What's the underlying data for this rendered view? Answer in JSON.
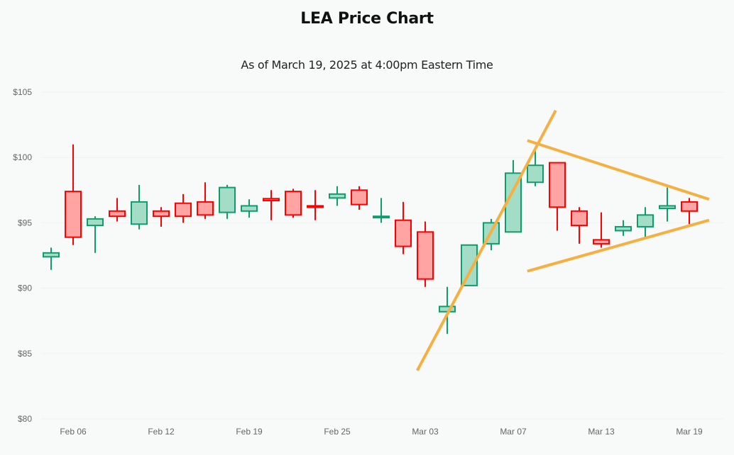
{
  "chart_data": {
    "type": "candlestick",
    "title": "LEA Price Chart",
    "subtitle": "As of March 19, 2025 at 4:00pm Eastern Time",
    "xlabel": "",
    "ylabel": "",
    "ylim": [
      80,
      105
    ],
    "y_ticks": [
      {
        "value": 105,
        "label": "$105"
      },
      {
        "value": 100,
        "label": "$100"
      },
      {
        "value": 95,
        "label": "$95"
      },
      {
        "value": 90,
        "label": "$90"
      },
      {
        "value": 85,
        "label": "$85"
      },
      {
        "value": 80,
        "label": "$80"
      }
    ],
    "x_ticks": [
      {
        "index": 1,
        "label": "Feb 06"
      },
      {
        "index": 5,
        "label": "Feb 12"
      },
      {
        "index": 9,
        "label": "Feb 19"
      },
      {
        "index": 13,
        "label": "Feb 25"
      },
      {
        "index": 17,
        "label": "Mar 03"
      },
      {
        "index": 21,
        "label": "Mar 07"
      },
      {
        "index": 25,
        "label": "Mar 13"
      },
      {
        "index": 29,
        "label": "Mar 19"
      }
    ],
    "grid": true,
    "colors": {
      "up_stroke": "#0f9d6b",
      "up_fill": "#a3dcc7",
      "down_stroke": "#ff0000",
      "down_fill": "#ffa3a3",
      "trendline": "#f5b041",
      "grid": "#eef3f1"
    },
    "candles": [
      {
        "open": 92.4,
        "high": 93.1,
        "low": 91.4,
        "close": 92.7
      },
      {
        "open": 97.4,
        "high": 101.0,
        "low": 93.3,
        "close": 93.9
      },
      {
        "open": 94.8,
        "high": 95.5,
        "low": 92.7,
        "close": 95.3
      },
      {
        "open": 95.9,
        "high": 96.9,
        "low": 95.1,
        "close": 95.5
      },
      {
        "open": 94.9,
        "high": 97.9,
        "low": 94.5,
        "close": 96.6
      },
      {
        "open": 95.9,
        "high": 96.2,
        "low": 94.7,
        "close": 95.5
      },
      {
        "open": 96.5,
        "high": 97.2,
        "low": 95.0,
        "close": 95.5
      },
      {
        "open": 96.6,
        "high": 98.1,
        "low": 95.3,
        "close": 95.6
      },
      {
        "open": 95.8,
        "high": 97.9,
        "low": 95.3,
        "close": 97.7
      },
      {
        "open": 95.9,
        "high": 96.8,
        "low": 95.4,
        "close": 96.3
      },
      {
        "open": 96.85,
        "high": 97.5,
        "low": 95.2,
        "close": 96.7
      },
      {
        "open": 97.4,
        "high": 97.6,
        "low": 95.4,
        "close": 95.6
      },
      {
        "open": 96.3,
        "high": 97.5,
        "low": 95.2,
        "close": 96.2
      },
      {
        "open": 96.9,
        "high": 97.8,
        "low": 96.3,
        "close": 97.2
      },
      {
        "open": 97.5,
        "high": 97.8,
        "low": 96.0,
        "close": 96.4
      },
      {
        "open": 95.4,
        "high": 96.9,
        "low": 95.0,
        "close": 95.5
      },
      {
        "open": 95.2,
        "high": 96.6,
        "low": 92.6,
        "close": 93.2
      },
      {
        "open": 94.3,
        "high": 95.1,
        "low": 90.1,
        "close": 90.7
      },
      {
        "open": 88.2,
        "high": 90.1,
        "low": 86.5,
        "close": 88.6
      },
      {
        "open": 90.2,
        "high": 93.3,
        "low": 90.2,
        "close": 93.3
      },
      {
        "open": 93.4,
        "high": 95.3,
        "low": 92.9,
        "close": 95.0
      },
      {
        "open": 94.3,
        "high": 99.8,
        "low": 94.3,
        "close": 98.8
      },
      {
        "open": 98.1,
        "high": 100.8,
        "low": 97.8,
        "close": 99.4
      },
      {
        "open": 99.6,
        "high": 99.6,
        "low": 94.4,
        "close": 96.2
      },
      {
        "open": 95.9,
        "high": 96.2,
        "low": 93.4,
        "close": 94.8
      },
      {
        "open": 93.7,
        "high": 95.8,
        "low": 93.1,
        "close": 93.4
      },
      {
        "open": 94.4,
        "high": 95.2,
        "low": 94.0,
        "close": 94.7
      },
      {
        "open": 94.7,
        "high": 96.2,
        "low": 93.9,
        "close": 95.6
      },
      {
        "open": 96.1,
        "high": 97.7,
        "low": 95.1,
        "close": 96.3
      },
      {
        "open": 96.6,
        "high": 96.9,
        "low": 94.9,
        "close": 95.9
      }
    ],
    "trendlines": [
      {
        "name": "breakout-line",
        "start": {
          "index": 16.64,
          "price": 83.7
        },
        "end": {
          "index": 22.93,
          "price": 103.6
        }
      },
      {
        "name": "triangle-upper",
        "start": {
          "index": 21.64,
          "price": 101.3
        },
        "end": {
          "index": 29.9,
          "price": 96.8
        }
      },
      {
        "name": "triangle-lower",
        "start": {
          "index": 21.64,
          "price": 91.3
        },
        "end": {
          "index": 29.9,
          "price": 95.2
        }
      }
    ]
  }
}
